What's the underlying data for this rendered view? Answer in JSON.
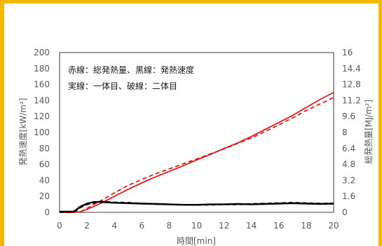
{
  "frame": {
    "border_color": "#F5B800"
  },
  "chart_data": {
    "type": "line",
    "title": "",
    "xlabel": "時間[min]",
    "ylabel_left": "発熱速度[kW/m²]",
    "ylabel_right": "総発熱量[MJ/m²]",
    "xlim": [
      0,
      20
    ],
    "ylim_left": [
      0,
      200
    ],
    "ylim_right": [
      0,
      16
    ],
    "x_ticks": [
      "0",
      "2",
      "4",
      "6",
      "8",
      "10",
      "12",
      "14",
      "16",
      "18",
      "20"
    ],
    "y_left_ticks": [
      "0",
      "20",
      "40",
      "60",
      "80",
      "100",
      "120",
      "140",
      "160",
      "180",
      "200"
    ],
    "y_right_ticks": [
      "0",
      "1.6",
      "3.2",
      "4.8",
      "6.4",
      "8",
      "9.6",
      "11.2",
      "12.8",
      "14.4",
      "16"
    ],
    "grid": false,
    "annotations": [
      "赤線：総発熱量、黒線：発熱速度",
      "実線：一体目、破線：二体目"
    ],
    "series": [
      {
        "axis": "right",
        "color": "#E31A1C",
        "style": "solid",
        "x": [
          0,
          1,
          1.5,
          2,
          2.5,
          3,
          4,
          5,
          6,
          7,
          8,
          9,
          10,
          11,
          12,
          13,
          14,
          15,
          16,
          17,
          18,
          19,
          20
        ],
        "y": [
          0,
          0,
          0.05,
          0.3,
          0.6,
          0.9,
          1.6,
          2.3,
          2.95,
          3.55,
          4.1,
          4.65,
          5.25,
          5.8,
          6.4,
          6.95,
          7.6,
          8.3,
          9.0,
          9.7,
          10.5,
          11.3,
          12.0
        ]
      },
      {
        "axis": "right",
        "color": "#E31A1C",
        "style": "dashed",
        "x": [
          0,
          1,
          1.5,
          2,
          2.5,
          3,
          4,
          5,
          6,
          7,
          8,
          9,
          10,
          11,
          12,
          13,
          14,
          15,
          16,
          17,
          18,
          19,
          20
        ],
        "y": [
          0,
          0,
          0.05,
          0.4,
          0.8,
          1.15,
          1.95,
          2.7,
          3.3,
          3.85,
          4.35,
          4.85,
          5.35,
          5.85,
          6.35,
          6.9,
          7.45,
          8.1,
          8.75,
          9.45,
          10.2,
          10.85,
          11.5
        ]
      },
      {
        "axis": "left",
        "color": "#000000",
        "style": "solid",
        "x": [
          0,
          0.5,
          1,
          1.2,
          1.5,
          2,
          2.5,
          3,
          3.5,
          4,
          5,
          6,
          7,
          8,
          9,
          10,
          11,
          12,
          13,
          14,
          15,
          16,
          17,
          18,
          19,
          20
        ],
        "y": [
          1,
          1,
          1,
          3,
          7,
          11,
          13,
          13,
          12.5,
          12,
          11.5,
          11,
          10.5,
          10,
          9.5,
          9.5,
          10,
          10,
          10.5,
          10,
          10.5,
          11,
          11.5,
          11,
          10.5,
          11
        ]
      },
      {
        "axis": "left",
        "color": "#000000",
        "style": "dashed",
        "x": [
          0,
          0.5,
          1,
          1.2,
          1.5,
          2,
          2.5,
          3,
          3.5,
          4,
          5,
          6,
          7,
          8,
          9,
          10,
          11,
          12,
          13,
          14,
          15,
          16,
          17,
          18,
          19,
          20
        ],
        "y": [
          0.5,
          0.5,
          0.5,
          2,
          6,
          10,
          12,
          13.5,
          13,
          12.5,
          12,
          11,
          10.5,
          10,
          9.5,
          9.5,
          9.5,
          10,
          10,
          10.5,
          11,
          11.5,
          12,
          11.5,
          11,
          11
        ]
      }
    ]
  }
}
